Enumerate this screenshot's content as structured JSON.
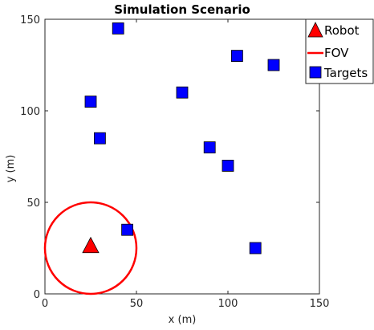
{
  "chart_data": {
    "type": "scatter",
    "title": "Simulation Scenario",
    "xlabel": "x (m)",
    "ylabel": "y (m)",
    "xlim": [
      0,
      150
    ],
    "ylim": [
      0,
      150
    ],
    "xticks": [
      0,
      50,
      100,
      150
    ],
    "yticks": [
      0,
      50,
      100,
      150
    ],
    "grid": false,
    "legend_position": "top-right",
    "robot": {
      "name": "Robot",
      "x": 25,
      "y": 26,
      "color": "#ff0000",
      "marker": "triangle"
    },
    "fov": {
      "name": "FOV",
      "cx": 25,
      "cy": 25,
      "r": 25,
      "color": "#ff0000"
    },
    "targets": {
      "name": "Targets",
      "color": "#0000ff",
      "marker": "square",
      "points": [
        {
          "x": 40,
          "y": 145
        },
        {
          "x": 105,
          "y": 130
        },
        {
          "x": 125,
          "y": 125
        },
        {
          "x": 25,
          "y": 105
        },
        {
          "x": 75,
          "y": 110
        },
        {
          "x": 30,
          "y": 85
        },
        {
          "x": 90,
          "y": 80
        },
        {
          "x": 100,
          "y": 70
        },
        {
          "x": 45,
          "y": 35
        },
        {
          "x": 115,
          "y": 25
        }
      ]
    }
  }
}
